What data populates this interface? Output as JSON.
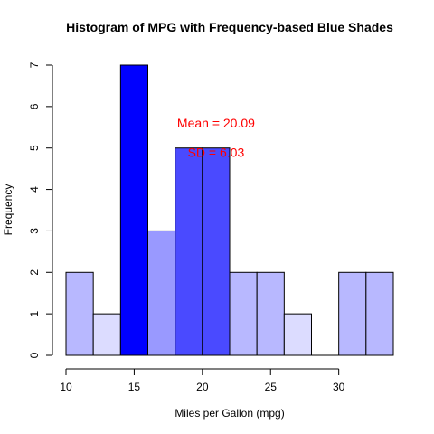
{
  "chart_data": {
    "type": "bar",
    "title": "Histogram of MPG with Frequency-based Blue Shades",
    "xlabel": "Miles per Gallon (mpg)",
    "ylabel": "Frequency",
    "bins": [
      {
        "from": 10,
        "to": 12,
        "count": 2,
        "color": "#b8b8ff"
      },
      {
        "from": 12,
        "to": 14,
        "count": 1,
        "color": "#dcdcff"
      },
      {
        "from": 14,
        "to": 16,
        "count": 7,
        "color": "#0000ff"
      },
      {
        "from": 16,
        "to": 18,
        "count": 3,
        "color": "#9999ff"
      },
      {
        "from": 18,
        "to": 20,
        "count": 5,
        "color": "#4a4aff"
      },
      {
        "from": 20,
        "to": 22,
        "count": 5,
        "color": "#4a4aff"
      },
      {
        "from": 22,
        "to": 24,
        "count": 2,
        "color": "#b8b8ff"
      },
      {
        "from": 24,
        "to": 26,
        "count": 2,
        "color": "#b8b8ff"
      },
      {
        "from": 26,
        "to": 28,
        "count": 1,
        "color": "#dcdcff"
      },
      {
        "from": 28,
        "to": 30,
        "count": 0,
        "color": "#ffffff"
      },
      {
        "from": 30,
        "to": 32,
        "count": 2,
        "color": "#b8b8ff"
      },
      {
        "from": 32,
        "to": 34,
        "count": 2,
        "color": "#b8b8ff"
      }
    ],
    "xlim": [
      10,
      34
    ],
    "ylim": [
      0,
      7
    ],
    "x_ticks": [
      "10",
      "15",
      "20",
      "25",
      "30"
    ],
    "y_ticks": [
      "0",
      "1",
      "2",
      "3",
      "4",
      "5",
      "6",
      "7"
    ],
    "annotations": [
      {
        "text": "Mean = 20.09",
        "x": 21,
        "y": 5.6,
        "color": "#ff0000"
      },
      {
        "text": "SD = 6.03",
        "x": 21,
        "y": 4.9,
        "color": "#ff0000"
      }
    ],
    "grid": false
  }
}
